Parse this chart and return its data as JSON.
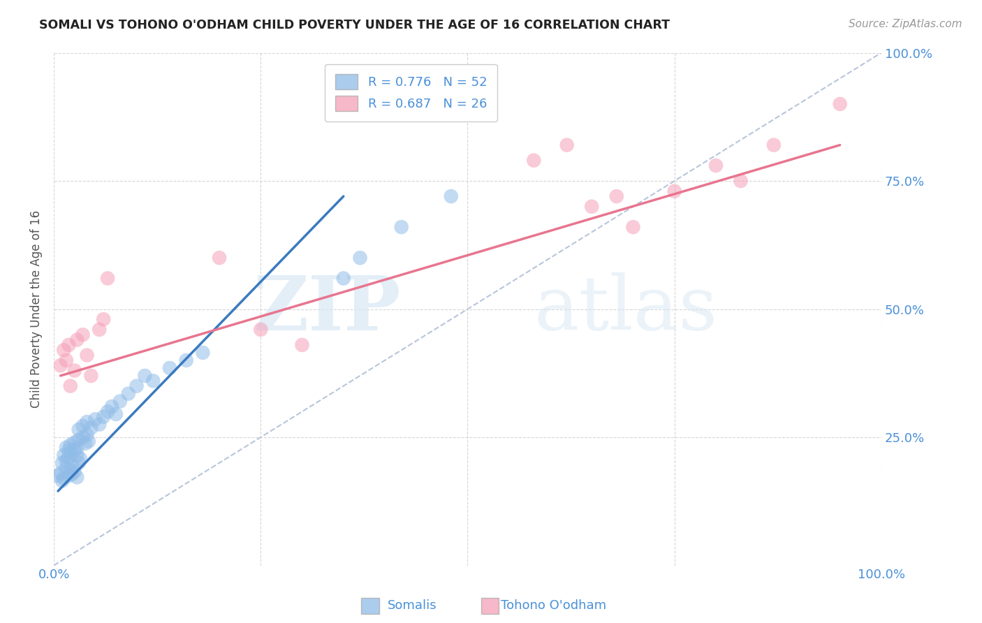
{
  "title": "SOMALI VS TOHONO O'ODHAM CHILD POVERTY UNDER THE AGE OF 16 CORRELATION CHART",
  "source": "Source: ZipAtlas.com",
  "ylabel": "Child Poverty Under the Age of 16",
  "xlim": [
    0,
    1
  ],
  "ylim": [
    0,
    1
  ],
  "somali_R": 0.776,
  "somali_N": 52,
  "tohono_R": 0.687,
  "tohono_N": 26,
  "somali_color": "#90bce8",
  "tohono_color": "#f5a0b8",
  "somali_line_color": "#3a7abf",
  "tohono_line_color": "#e8758f",
  "diagonal_color": "#b0bfd8",
  "watermark_zip": "ZIP",
  "watermark_atlas": "atlas",
  "background_color": "#ffffff",
  "grid_color": "#cccccc",
  "title_color": "#222222",
  "axis_label_color": "#555555",
  "tick_color_blue": "#4a90d9",
  "tick_color_right": "#4a90d9",
  "somali_x": [
    0.005,
    0.008,
    0.01,
    0.012,
    0.015,
    0.018,
    0.02,
    0.022,
    0.025,
    0.028,
    0.01,
    0.012,
    0.015,
    0.018,
    0.02,
    0.022,
    0.025,
    0.028,
    0.03,
    0.032,
    0.015,
    0.018,
    0.02,
    0.025,
    0.028,
    0.03,
    0.035,
    0.038,
    0.04,
    0.042,
    0.03,
    0.035,
    0.04,
    0.045,
    0.05,
    0.055,
    0.06,
    0.065,
    0.07,
    0.075,
    0.08,
    0.09,
    0.1,
    0.11,
    0.12,
    0.14,
    0.16,
    0.18,
    0.35,
    0.37,
    0.42,
    0.48
  ],
  "somali_y": [
    0.175,
    0.18,
    0.165,
    0.17,
    0.19,
    0.175,
    0.185,
    0.178,
    0.183,
    0.172,
    0.2,
    0.215,
    0.205,
    0.21,
    0.22,
    0.195,
    0.225,
    0.215,
    0.2,
    0.208,
    0.23,
    0.225,
    0.235,
    0.24,
    0.228,
    0.245,
    0.25,
    0.238,
    0.255,
    0.242,
    0.265,
    0.272,
    0.28,
    0.268,
    0.285,
    0.275,
    0.29,
    0.3,
    0.31,
    0.295,
    0.32,
    0.335,
    0.35,
    0.37,
    0.36,
    0.385,
    0.4,
    0.415,
    0.56,
    0.6,
    0.66,
    0.72
  ],
  "tohono_x": [
    0.008,
    0.012,
    0.015,
    0.018,
    0.02,
    0.025,
    0.028,
    0.035,
    0.04,
    0.045,
    0.055,
    0.06,
    0.065,
    0.2,
    0.25,
    0.3,
    0.58,
    0.62,
    0.65,
    0.68,
    0.7,
    0.75,
    0.8,
    0.83,
    0.87,
    0.95
  ],
  "tohono_y": [
    0.39,
    0.42,
    0.4,
    0.43,
    0.35,
    0.38,
    0.44,
    0.45,
    0.41,
    0.37,
    0.46,
    0.48,
    0.56,
    0.6,
    0.46,
    0.43,
    0.79,
    0.82,
    0.7,
    0.72,
    0.66,
    0.73,
    0.78,
    0.75,
    0.82,
    0.9
  ],
  "somali_trendline_x": [
    0.005,
    0.35
  ],
  "somali_trendline_y": [
    0.145,
    0.72
  ],
  "tohono_trendline_x": [
    0.008,
    0.95
  ],
  "tohono_trendline_y": [
    0.37,
    0.82
  ]
}
